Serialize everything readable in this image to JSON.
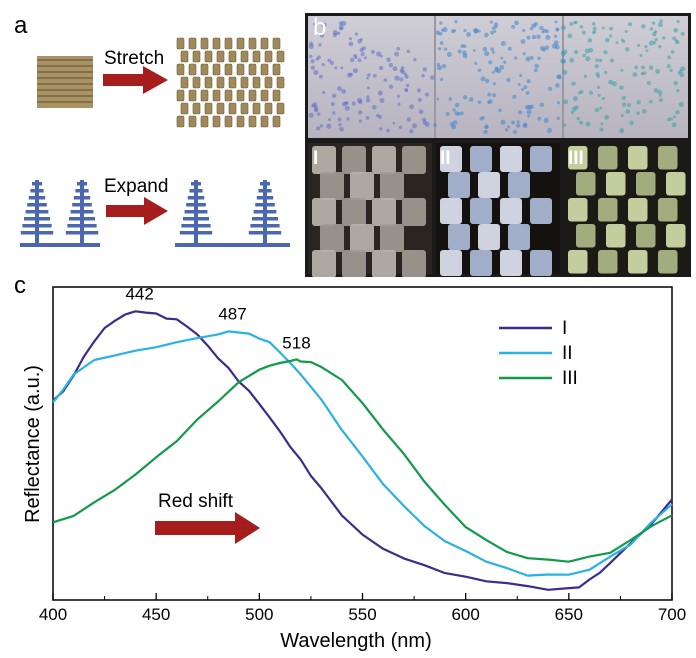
{
  "panels": {
    "a": "a",
    "b": "b",
    "c": "c"
  },
  "schematic": {
    "stretch_label": "Stretch",
    "expand_label": "Expand"
  },
  "photos": {
    "roman": [
      "I",
      "II",
      "III"
    ]
  },
  "colors": {
    "series_I": "#3a2d8c",
    "series_II": "#29b2e4",
    "series_III": "#139a4a",
    "arrow": "#a51d1d",
    "structure": "#4a67b0",
    "scale_tan": "#9e8a5c"
  },
  "chart_data": {
    "type": "line",
    "xlabel": "Wavelength (nm)",
    "ylabel": "Reflectance (a.u.)",
    "xlim": [
      400,
      700
    ],
    "ylim": [
      0,
      1
    ],
    "xticks": [
      400,
      450,
      500,
      550,
      600,
      650,
      700
    ],
    "legend_position": "top-right",
    "annotation": "Red shift",
    "peak_labels": [
      "442",
      "487",
      "518"
    ],
    "peak_x": [
      442,
      487,
      518
    ],
    "peak_y": [
      0.98,
      0.91,
      0.81
    ],
    "series": [
      {
        "name": "I",
        "color": "#3a2d8c",
        "x": [
          400,
          405,
          410,
          415,
          420,
          425,
          430,
          435,
          440,
          445,
          450,
          455,
          460,
          465,
          470,
          475,
          480,
          485,
          490,
          495,
          500,
          505,
          510,
          515,
          520,
          525,
          530,
          540,
          550,
          560,
          570,
          580,
          590,
          600,
          610,
          620,
          630,
          640,
          650,
          655,
          660,
          665,
          670,
          680,
          690,
          700
        ],
        "y": [
          0.67,
          0.7,
          0.76,
          0.82,
          0.88,
          0.92,
          0.95,
          0.97,
          0.98,
          0.98,
          0.97,
          0.96,
          0.95,
          0.93,
          0.9,
          0.86,
          0.82,
          0.78,
          0.74,
          0.7,
          0.66,
          0.61,
          0.56,
          0.51,
          0.46,
          0.41,
          0.36,
          0.27,
          0.2,
          0.15,
          0.12,
          0.09,
          0.07,
          0.05,
          0.04,
          0.03,
          0.02,
          0.01,
          0.01,
          0.02,
          0.04,
          0.07,
          0.1,
          0.17,
          0.24,
          0.32
        ]
      },
      {
        "name": "II",
        "color": "#29b2e4",
        "x": [
          400,
          405,
          410,
          420,
          430,
          440,
          450,
          460,
          470,
          480,
          485,
          490,
          495,
          500,
          505,
          510,
          515,
          520,
          525,
          530,
          540,
          550,
          560,
          570,
          580,
          590,
          600,
          610,
          620,
          630,
          640,
          650,
          660,
          670,
          680,
          690,
          700
        ],
        "y": [
          0.66,
          0.71,
          0.76,
          0.81,
          0.83,
          0.84,
          0.86,
          0.87,
          0.89,
          0.9,
          0.91,
          0.91,
          0.9,
          0.89,
          0.87,
          0.84,
          0.8,
          0.76,
          0.72,
          0.67,
          0.57,
          0.47,
          0.38,
          0.3,
          0.23,
          0.18,
          0.14,
          0.11,
          0.08,
          0.06,
          0.06,
          0.06,
          0.08,
          0.12,
          0.17,
          0.24,
          0.31
        ]
      },
      {
        "name": "III",
        "color": "#139a4a",
        "x": [
          400,
          410,
          420,
          430,
          440,
          450,
          460,
          470,
          480,
          490,
          500,
          505,
          510,
          515,
          518,
          520,
          525,
          530,
          540,
          550,
          560,
          570,
          580,
          590,
          600,
          610,
          620,
          630,
          640,
          650,
          660,
          670,
          680,
          690,
          700
        ],
        "y": [
          0.24,
          0.27,
          0.31,
          0.36,
          0.41,
          0.47,
          0.53,
          0.6,
          0.67,
          0.73,
          0.78,
          0.79,
          0.8,
          0.81,
          0.81,
          0.81,
          0.8,
          0.79,
          0.74,
          0.66,
          0.57,
          0.48,
          0.39,
          0.3,
          0.23,
          0.18,
          0.14,
          0.12,
          0.11,
          0.11,
          0.12,
          0.14,
          0.18,
          0.23,
          0.27
        ]
      }
    ]
  }
}
